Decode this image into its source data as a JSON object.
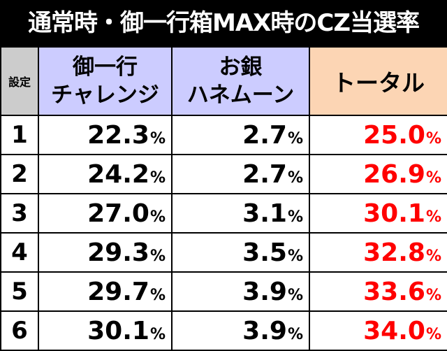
{
  "title": "通常時・御一行箱MAX時のCZ当選率",
  "headers": {
    "setting": "設定",
    "col1_line1": "御一行",
    "col1_line2": "チャレンジ",
    "col2_line1": "お銀",
    "col2_line2": "ハネムーン",
    "total": "トータル"
  },
  "percent_sign": "%",
  "rows": [
    {
      "setting": "1",
      "challenge": "22.3",
      "honeymoon": "2.7",
      "total": "25.0"
    },
    {
      "setting": "2",
      "challenge": "24.2",
      "honeymoon": "2.7",
      "total": "26.9"
    },
    {
      "setting": "3",
      "challenge": "27.0",
      "honeymoon": "3.1",
      "total": "30.1"
    },
    {
      "setting": "4",
      "challenge": "29.3",
      "honeymoon": "3.5",
      "total": "32.8"
    },
    {
      "setting": "5",
      "challenge": "29.7",
      "honeymoon": "3.9",
      "total": "33.6"
    },
    {
      "setting": "6",
      "challenge": "30.1",
      "honeymoon": "3.9",
      "total": "34.0"
    }
  ],
  "colors": {
    "title_bg": "#000000",
    "header_setting_bg": "#cccccc",
    "header_blue_bg": "#ccccff",
    "header_total_bg": "#fcd5b4",
    "total_text": "#ff0000"
  }
}
